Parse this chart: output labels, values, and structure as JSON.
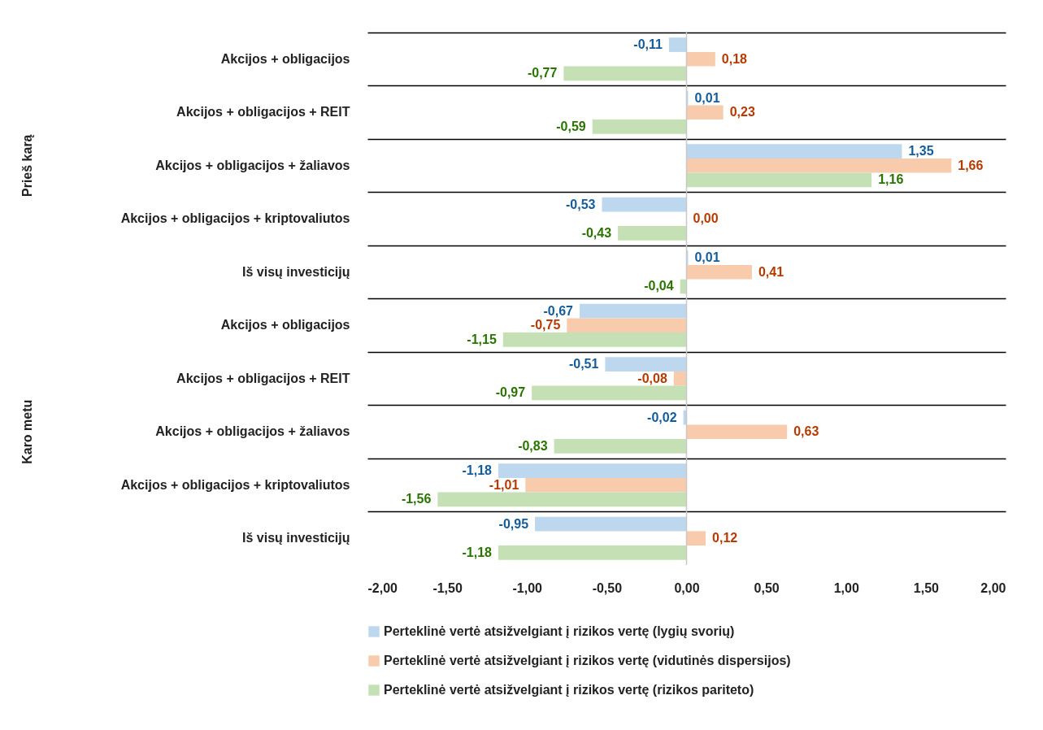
{
  "chart_data": {
    "type": "bar",
    "orientation": "horizontal",
    "categories": [
      "Akcijos + obligacijos",
      "Akcijos + obligacijos + REIT",
      "Akcijos + obligacijos + žaliavos",
      "Akcijos + obligacijos + kriptovaliutos",
      "Iš visų investicijų",
      "Akcijos + obligacijos",
      "Akcijos + obligacijos + REIT",
      "Akcijos + obligacijos + žaliavos",
      "Akcijos + obligacijos + kriptovaliutos",
      "Iš visų investicijų"
    ],
    "series": [
      {
        "name": "Perteklinė vertė atsižvelgiant į rizikos vertę (lygių svorių)",
        "color": "#bdd7ee",
        "values": [
          -0.11,
          0.01,
          1.35,
          -0.53,
          0.01,
          -0.67,
          -0.51,
          -0.02,
          -1.18,
          -0.95
        ],
        "value_labels": [
          "-0,11",
          "0,01",
          "1,35",
          "-0,53",
          "0,01",
          "-0,67",
          "-0,51",
          "-0,02",
          "-1,18",
          "-0,95"
        ]
      },
      {
        "name": "Perteklinė vertė atsižvelgiant į rizikos vertę (vidutinės dispersijos)",
        "color": "#f8cbad",
        "values": [
          0.18,
          0.23,
          1.66,
          0.0,
          0.41,
          -0.75,
          -0.08,
          0.63,
          -1.01,
          0.12
        ],
        "value_labels": [
          "0,18",
          "0,23",
          "1,66",
          "0,00",
          "0,41",
          "-0,75",
          "-0,08",
          "0,63",
          "-1,01",
          "0,12"
        ]
      },
      {
        "name": "Perteklinė vertė atsižvelgiant į rizikos vertę (rizikos pariteto)",
        "color": "#c5e0b4",
        "values": [
          -0.77,
          -0.59,
          1.16,
          -0.43,
          -0.04,
          -1.15,
          -0.97,
          -0.83,
          -1.56,
          -1.18
        ],
        "value_labels": [
          "-0,77",
          "-0,59",
          "1,16",
          "-0,43",
          "-0,04",
          "-1,15",
          "-0,97",
          "-0,83",
          "-1,56",
          "-1,18"
        ]
      }
    ],
    "annotations": [
      "Prieš karą",
      "Karo metu"
    ],
    "xlim": [
      -2,
      2
    ],
    "xticks": [
      {
        "value": -2,
        "label": "-2,00"
      },
      {
        "value": -1.5,
        "label": "-1,50"
      },
      {
        "value": -1,
        "label": "-1,00"
      },
      {
        "value": -0.5,
        "label": "-0,50"
      },
      {
        "value": 0,
        "label": "0,00"
      },
      {
        "value": 0.5,
        "label": "0,50"
      },
      {
        "value": 1,
        "label": "1,00"
      },
      {
        "value": 1.5,
        "label": "1,50"
      },
      {
        "value": 2,
        "label": "2,00"
      }
    ],
    "grid": "y",
    "legend": "bottom"
  }
}
